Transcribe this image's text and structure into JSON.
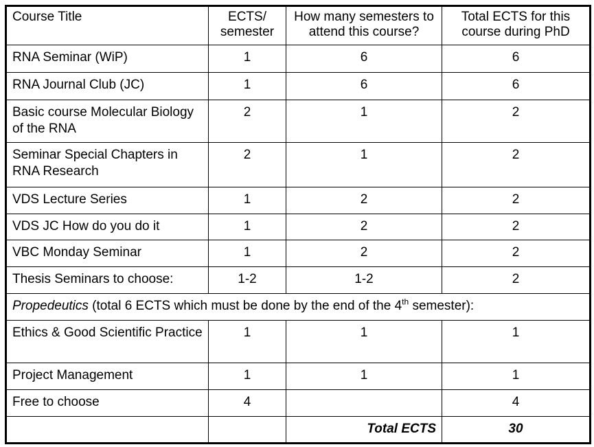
{
  "table": {
    "header": [
      "Course Title",
      "ECTS/ semester",
      "How many semesters to attend this course?",
      "Total ECTS for this course during PhD"
    ],
    "rows": [
      [
        "RNA Seminar (WiP)",
        1,
        6,
        6
      ],
      [
        "RNA Journal Club (JC)",
        1,
        6,
        6
      ],
      [
        "Basic course Molecular Biology of the RNA",
        2,
        1,
        2
      ],
      [
        "Seminar Special Chapters in RNA Research",
        2,
        1,
        2
      ],
      [
        "VDS Lecture Series",
        1,
        2,
        2
      ],
      [
        "VDS JC How do you do it",
        1,
        2,
        2
      ],
      [
        "VBC Monday Seminar",
        1,
        2,
        2
      ],
      [
        "Thesis Seminars to choose:",
        "1-2",
        "1-2",
        2
      ]
    ],
    "note": {
      "emphasis": "Propedeutics",
      "text": " (total 6 ECTS which must be done by the end of the 4",
      "sup": "th",
      "tail": " semester):"
    },
    "rows_after": [
      [
        "Ethics & Good Scientific Practice",
        1,
        1,
        1
      ],
      [
        "Project Management",
        1,
        1,
        1
      ],
      [
        "Free to choose",
        4,
        null,
        4
      ]
    ],
    "total": {
      "label": "Total ECTS",
      "value": 30
    }
  }
}
